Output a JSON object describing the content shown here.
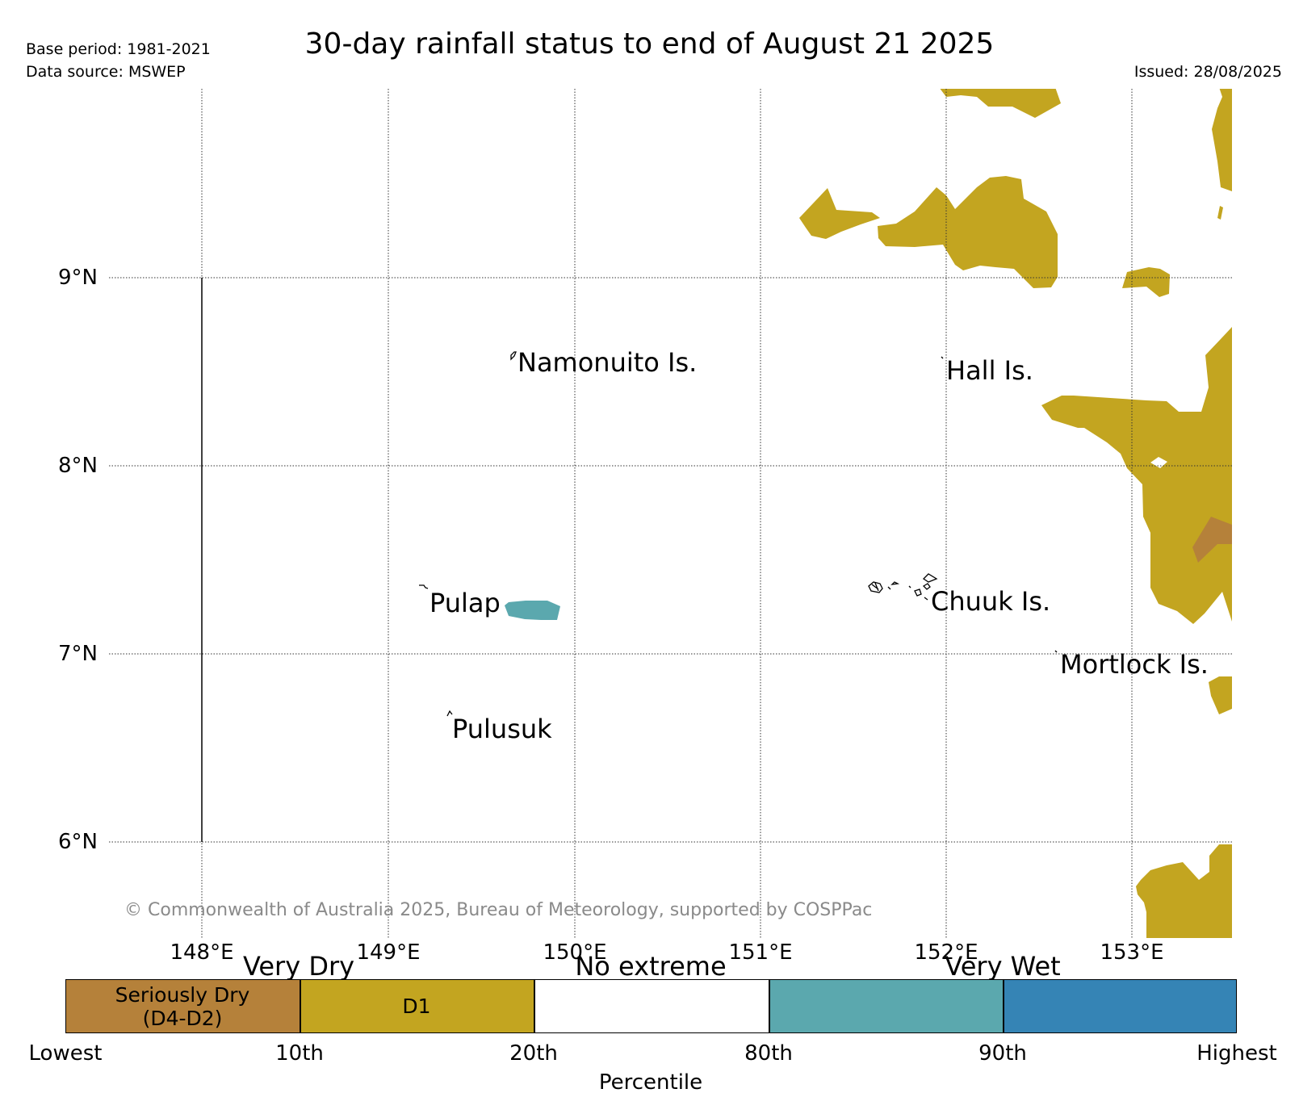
{
  "header": {
    "title": "30-day rainfall status to end of August 21 2025",
    "base_period": "Base period: 1981-2021",
    "data_source": "Data source: MSWEP",
    "issued": "Issued: 28/08/2025"
  },
  "map": {
    "lat_labels": [
      "9°N",
      "8°N",
      "7°N",
      "6°N"
    ],
    "lon_labels": [
      "148°E",
      "149°E",
      "150°E",
      "151°E",
      "152°E",
      "153°E"
    ],
    "places": [
      "Namonuito Is.",
      "Hall Is.",
      "Pulap",
      "Chuuk Is.",
      "Mortlock Is.",
      "Pulusuk"
    ],
    "copyright": "© Commonwealth of Australia 2025, Bureau of Meteorology, supported by COSPPac",
    "colors": {
      "seriously_dry": "#b5813a",
      "d1": "#c3a520",
      "no_extreme": "#ffffff",
      "wet": "#5ba8ae",
      "very_wet": "#3584b5"
    }
  },
  "legend": {
    "groups": [
      "Very Dry",
      "No extreme",
      "Very Wet"
    ],
    "cells": {
      "seriously_dry_line1": "Seriously Dry",
      "seriously_dry_line2": "(D4-D2)",
      "d1": "D1"
    },
    "percentiles": [
      "Lowest",
      "10th",
      "20th",
      "80th",
      "90th",
      "Highest"
    ],
    "axis_label": "Percentile"
  }
}
